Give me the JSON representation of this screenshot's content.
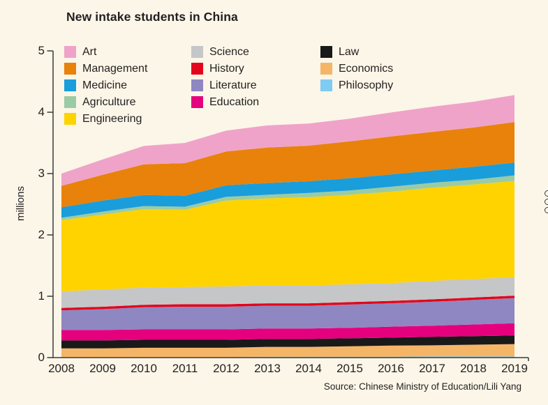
{
  "title": "New intake students in China",
  "source": "Source: Chinese Ministry of Education/Lili Yang",
  "background_color": "#FBF6E8",
  "text_color": "#231F20",
  "axis_color": "#3A3A3A",
  "chart_data": {
    "type": "area",
    "stacked": true,
    "title": "New intake students in China",
    "ylabel": "millions",
    "ylim": [
      0,
      5
    ],
    "yticks": [
      0,
      1,
      2,
      3,
      4,
      5
    ],
    "grid": false,
    "legend_position": "top",
    "x": [
      2008,
      2009,
      2010,
      2011,
      2012,
      2013,
      2014,
      2015,
      2016,
      2017,
      2018,
      2019
    ],
    "series": [
      {
        "name": "Philosophy",
        "color": "#7FCBF1",
        "values": [
          0.01,
          0.01,
          0.01,
          0.01,
          0.01,
          0.015,
          0.015,
          0.015,
          0.015,
          0.02,
          0.02,
          0.02
        ]
      },
      {
        "name": "Economics",
        "color": "#F5B567",
        "values": [
          0.14,
          0.14,
          0.15,
          0.15,
          0.15,
          0.16,
          0.16,
          0.17,
          0.18,
          0.18,
          0.19,
          0.2
        ]
      },
      {
        "name": "Law",
        "color": "#191919",
        "values": [
          0.13,
          0.13,
          0.13,
          0.13,
          0.13,
          0.13,
          0.13,
          0.13,
          0.13,
          0.14,
          0.14,
          0.14
        ]
      },
      {
        "name": "Education",
        "color": "#E5007D",
        "values": [
          0.17,
          0.17,
          0.17,
          0.17,
          0.17,
          0.17,
          0.17,
          0.17,
          0.18,
          0.18,
          0.19,
          0.2
        ]
      },
      {
        "name": "Literature",
        "color": "#8F87C1",
        "values": [
          0.32,
          0.34,
          0.36,
          0.37,
          0.37,
          0.37,
          0.37,
          0.38,
          0.38,
          0.39,
          0.4,
          0.41
        ]
      },
      {
        "name": "History",
        "color": "#E3051B",
        "values": [
          0.04,
          0.04,
          0.04,
          0.04,
          0.04,
          0.04,
          0.04,
          0.04,
          0.04,
          0.04,
          0.04,
          0.04
        ]
      },
      {
        "name": "Science",
        "color": "#C5C6C8",
        "values": [
          0.27,
          0.28,
          0.28,
          0.28,
          0.29,
          0.29,
          0.29,
          0.29,
          0.29,
          0.3,
          0.3,
          0.3
        ]
      },
      {
        "name": "Engineering",
        "color": "#FFD300",
        "values": [
          1.16,
          1.22,
          1.28,
          1.26,
          1.4,
          1.42,
          1.44,
          1.46,
          1.49,
          1.52,
          1.54,
          1.57
        ]
      },
      {
        "name": "Agriculture",
        "color": "#9BCBA4",
        "values": [
          0.04,
          0.05,
          0.05,
          0.05,
          0.06,
          0.06,
          0.07,
          0.07,
          0.08,
          0.08,
          0.08,
          0.09
        ]
      },
      {
        "name": "Medicine",
        "color": "#1A9DDB",
        "values": [
          0.17,
          0.18,
          0.18,
          0.18,
          0.19,
          0.19,
          0.19,
          0.2,
          0.2,
          0.2,
          0.21,
          0.21
        ]
      },
      {
        "name": "Management",
        "color": "#E8820A",
        "values": [
          0.35,
          0.42,
          0.5,
          0.53,
          0.55,
          0.58,
          0.58,
          0.6,
          0.62,
          0.63,
          0.64,
          0.66
        ]
      },
      {
        "name": "Art",
        "color": "#F0A3C8",
        "values": [
          0.2,
          0.25,
          0.3,
          0.33,
          0.34,
          0.36,
          0.36,
          0.37,
          0.39,
          0.41,
          0.42,
          0.44
        ]
      }
    ],
    "legend_columns": [
      [
        "Art",
        "Management",
        "Medicine",
        "Agriculture",
        "Engineering"
      ],
      [
        "Science",
        "History",
        "Literature",
        "Education"
      ],
      [
        "Law",
        "Economics",
        "Philosophy"
      ]
    ]
  },
  "icons": {
    "edge_marks": "three tiny clipped circle glyphs at right image edge"
  }
}
